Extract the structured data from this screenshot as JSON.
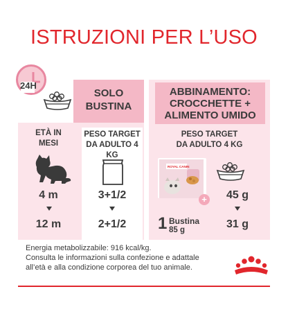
{
  "title": "ISTRUZIONI PER L’USO",
  "clock_label": "24H",
  "left_header": {
    "line1": "SOLO",
    "line2": "BUSTINA"
  },
  "right_header": {
    "line1": "ABBINAMENTO:",
    "line2": "CROCCHETTE +",
    "line3": "ALIMENTO UMIDO"
  },
  "age_col": {
    "line1": "ETÀ IN",
    "line2": "MESI",
    "from": "4 m",
    "to": "12 m"
  },
  "pouch_col": {
    "line1": "PESO TARGET",
    "line2": "DA ADULTO 4 KG",
    "from": "3+1/2",
    "to": "2+1/2"
  },
  "combo_col": {
    "line1": "PESO TARGET",
    "line2": "DA ADULTO 4 KG",
    "plus": "+",
    "pouch_count": "1",
    "pouch_label": "Bustina",
    "pouch_weight": "85 g",
    "from": "45 g",
    "to": "31 g"
  },
  "pouch_brand": "ROYAL CANIN",
  "footnote": {
    "line1": "Energia metabolizzabile: 916 kcal/kg.",
    "line2": "Consulta le informazioni sulla confezione e adattale",
    "line3": "all’età e alla condizione corporea del tuo animale."
  },
  "colors": {
    "brand_red": "#e1262c",
    "panel_pink": "#fce4ea",
    "header_pink": "#f4b8c6"
  }
}
